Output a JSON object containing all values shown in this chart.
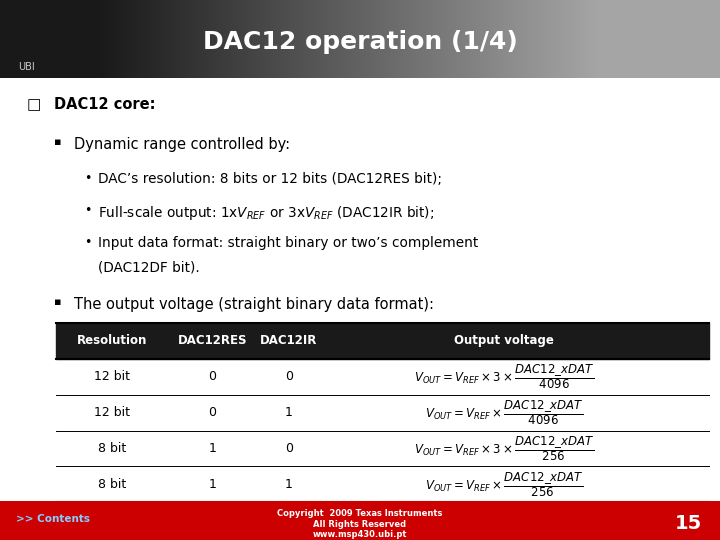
{
  "title": "DAC12 operation (1/4)",
  "section_head": "DAC12 core:",
  "bullet1": "Dynamic range controlled by:",
  "sub1": "DAC’s resolution: 8 bits or 12 bits (DAC12RES bit);",
  "sub3a": "Input data format: straight binary or two’s complement",
  "sub3b": "(DAC12DF bit).",
  "bullet2": "The output voltage (straight binary data format):",
  "table_headers": [
    "Resolution",
    "DAC12RES",
    "DAC12IR",
    "Output voltage"
  ],
  "table_rows": [
    [
      "12 bit",
      "0",
      "0"
    ],
    [
      "12 bit",
      "0",
      "1"
    ],
    [
      "8 bit",
      "1",
      "0"
    ],
    [
      "8 bit",
      "1",
      "1"
    ]
  ],
  "footer_link": ">> Contents",
  "footer_copy1": "Copyright  2009 Texas Instruments",
  "footer_copy2": "All Rights Reserved",
  "footer_copy3": "www.msp430.ubi.pt",
  "footer_page": "15",
  "footer_bg": "#CC0000",
  "header_dark": "#222222",
  "header_mid": "#666666",
  "header_light": "#999999",
  "table_header_bg": "#1a1a1a"
}
